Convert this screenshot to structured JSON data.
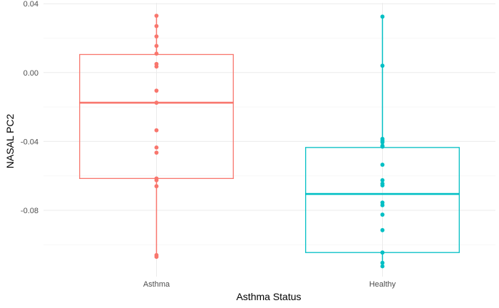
{
  "chart_data": {
    "type": "box",
    "xlabel": "Asthma Status",
    "ylabel": "NASAL PC2",
    "ylim": [
      -0.1185,
      0.0405
    ],
    "yticks": [
      0.04,
      0.0,
      -0.04,
      -0.08
    ],
    "ytick_labels": [
      "0.04",
      "0.00",
      "-0.04",
      "-0.08"
    ],
    "categories": [
      "Asthma",
      "Healthy"
    ],
    "grid": true,
    "groups": [
      {
        "name": "Asthma",
        "color": "#F8766D",
        "box": {
          "min": -0.107,
          "q1": -0.0615,
          "median": -0.0175,
          "q3": 0.0105,
          "max": 0.033
        },
        "points": [
          0.033,
          0.027,
          0.021,
          0.0155,
          0.011,
          0.005,
          0.0035,
          -0.0105,
          -0.0175,
          -0.0335,
          -0.0435,
          -0.0465,
          -0.0615,
          -0.0625,
          -0.066,
          -0.106,
          -0.107
        ]
      },
      {
        "name": "Healthy",
        "color": "#00BFC4",
        "box": {
          "min": -0.1125,
          "q1": -0.1045,
          "median": -0.0705,
          "q3": -0.0435,
          "max": 0.0325
        },
        "points": [
          0.0325,
          0.004,
          -0.0385,
          -0.0395,
          -0.0405,
          -0.0425,
          -0.043,
          -0.0535,
          -0.0625,
          -0.0645,
          -0.0655,
          -0.0755,
          -0.077,
          -0.0825,
          -0.0915,
          -0.1045,
          -0.1105,
          -0.1125
        ]
      }
    ]
  }
}
